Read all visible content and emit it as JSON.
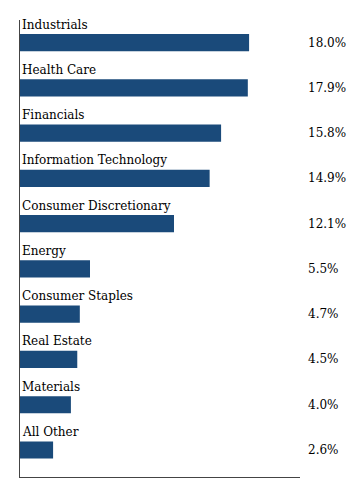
{
  "chart_data": {
    "type": "bar",
    "orientation": "horizontal",
    "categories": [
      "Industrials",
      "Health Care",
      "Financials",
      "Information Technology",
      "Consumer Discretionary",
      "Energy",
      "Consumer Staples",
      "Real Estate",
      "Materials",
      "All Other"
    ],
    "values": [
      18.0,
      17.9,
      15.8,
      14.9,
      12.1,
      5.5,
      4.7,
      4.5,
      4.0,
      2.6
    ],
    "value_labels": [
      "18.0%",
      "17.9%",
      "15.8%",
      "14.9%",
      "12.1%",
      "5.5%",
      "4.7%",
      "4.5%",
      "4.0%",
      "2.6%"
    ],
    "color": "#1a4a7a",
    "xlim": [
      0,
      22
    ],
    "data_labels": true,
    "tick_labels": false,
    "grid": false
  }
}
